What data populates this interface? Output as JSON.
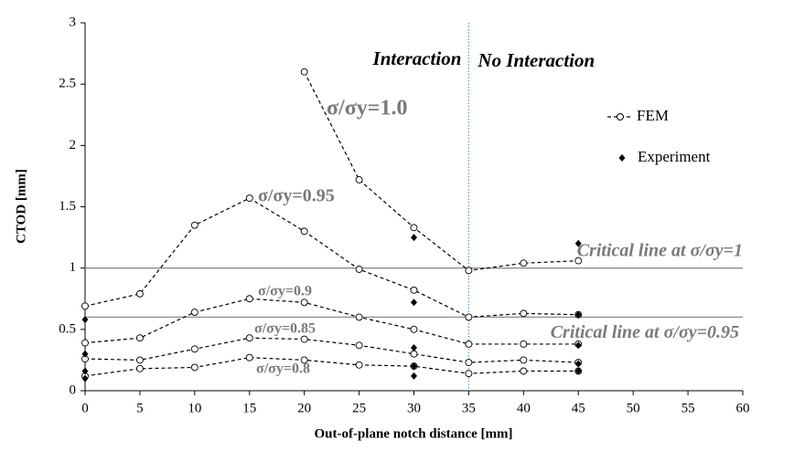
{
  "chart_data": {
    "type": "line",
    "x_label": "Out-of-plane notch distance [mm]",
    "y_label": "CTOD [mm]",
    "xlim": [
      0,
      60
    ],
    "xticks": [
      0,
      5,
      10,
      15,
      20,
      25,
      30,
      35,
      40,
      45,
      50,
      55,
      60
    ],
    "ylim": [
      0,
      3
    ],
    "yticks": [
      0,
      0.5,
      1,
      1.5,
      2,
      2.5,
      3
    ],
    "fem": {
      "name": "FEM",
      "color": "#000000",
      "x": [
        0,
        5,
        10,
        15,
        20,
        25,
        30,
        35,
        40,
        45
      ],
      "series": [
        {
          "name": "σ/σy=1.0",
          "values": [
            null,
            null,
            null,
            null,
            2.6,
            1.72,
            1.33,
            0.98,
            1.04,
            1.06
          ]
        },
        {
          "name": "σ/σy=0.95",
          "values": [
            0.69,
            0.79,
            1.35,
            1.57,
            1.3,
            0.99,
            0.82,
            0.6,
            0.63,
            0.62
          ]
        },
        {
          "name": "σ/σy=0.9",
          "values": [
            0.39,
            0.43,
            0.64,
            0.75,
            0.72,
            0.6,
            0.5,
            0.38,
            0.38,
            0.38
          ]
        },
        {
          "name": "σ/σy=0.85",
          "values": [
            0.26,
            0.25,
            0.34,
            0.43,
            0.42,
            0.37,
            0.3,
            0.23,
            0.25,
            0.23
          ]
        },
        {
          "name": "σ/σy=0.8",
          "values": [
            0.12,
            0.18,
            0.19,
            0.27,
            0.25,
            0.21,
            0.2,
            0.14,
            0.16,
            0.16
          ]
        }
      ]
    },
    "experiment": {
      "name": "Experiment",
      "color": "#000000",
      "x": [
        0,
        0,
        0,
        0,
        30,
        30,
        30,
        30,
        30,
        45,
        45,
        45,
        45,
        45
      ],
      "values": [
        0.58,
        0.3,
        0.16,
        0.1,
        1.25,
        0.72,
        0.35,
        0.2,
        0.12,
        1.2,
        0.62,
        0.37,
        0.22,
        0.16
      ]
    },
    "reference_lines": [
      {
        "value": 1,
        "label": "Critical line at σ/σy=1"
      },
      {
        "value": 0.6,
        "label": "Critical line at σ/σy=0.95"
      }
    ],
    "divider": {
      "value": 35,
      "left_label": "Interaction",
      "right_label": "No Interaction"
    }
  }
}
